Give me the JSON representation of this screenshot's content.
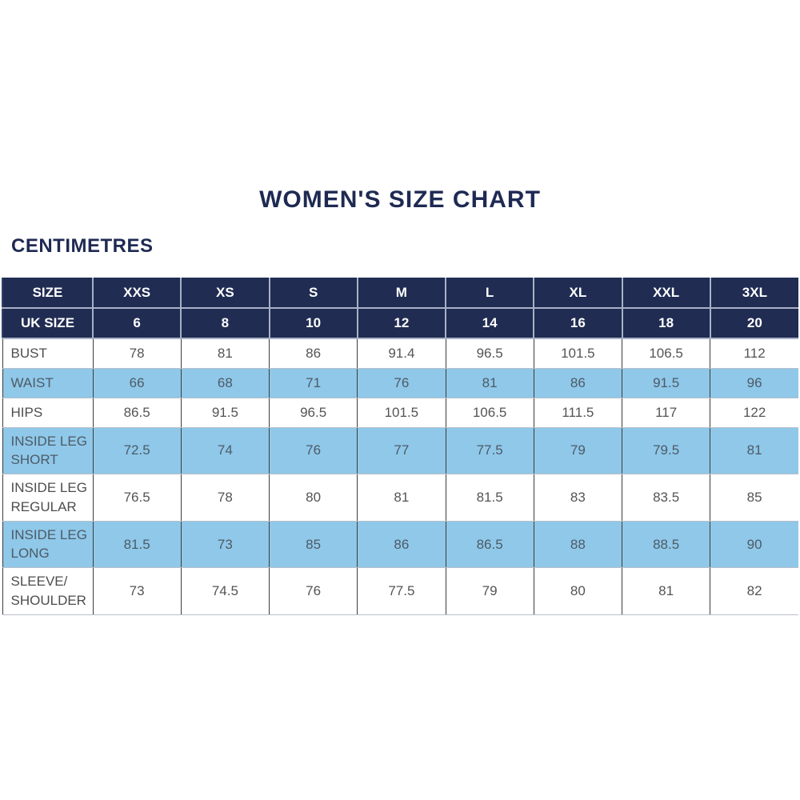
{
  "page": {
    "title": "WOMEN'S SIZE CHART",
    "subtitle": "CENTIMETRES"
  },
  "colors": {
    "navy_header": "#202c52",
    "light_blue_row": "#8fc8e9",
    "title_text": "#1e2a52",
    "header_text": "#ffffff",
    "body_text": "#545454"
  },
  "chart_data": {
    "type": "table",
    "title": "WOMEN'S SIZE CHART",
    "unit": "CENTIMETRES",
    "header_rows": [
      {
        "label": "SIZE",
        "values": [
          "XXS",
          "XS",
          "S",
          "M",
          "L",
          "XL",
          "XXL",
          "3XL"
        ]
      },
      {
        "label": "UK SIZE",
        "values": [
          "6",
          "8",
          "10",
          "12",
          "14",
          "16",
          "18",
          "20"
        ]
      }
    ],
    "rows": [
      {
        "label": "BUST",
        "values": [
          "78",
          "81",
          "86",
          "91.4",
          "96.5",
          "101.5",
          "106.5",
          "112"
        ]
      },
      {
        "label": "WAIST",
        "values": [
          "66",
          "68",
          "71",
          "76",
          "81",
          "86",
          "91.5",
          "96"
        ]
      },
      {
        "label": "HIPS",
        "values": [
          "86.5",
          "91.5",
          "96.5",
          "101.5",
          "106.5",
          "111.5",
          "117",
          "122"
        ]
      },
      {
        "label": "INSIDE LEG SHORT",
        "values": [
          "72.5",
          "74",
          "76",
          "77",
          "77.5",
          "79",
          "79.5",
          "81"
        ]
      },
      {
        "label": "INSIDE LEG REGULAR",
        "values": [
          "76.5",
          "78",
          "80",
          "81",
          "81.5",
          "83",
          "83.5",
          "85"
        ]
      },
      {
        "label": "INSIDE LEG LONG",
        "values": [
          "81.5",
          "73",
          "85",
          "86",
          "86.5",
          "88",
          "88.5",
          "90"
        ]
      },
      {
        "label": "SLEEVE/ SHOULDER",
        "values": [
          "73",
          "74.5",
          "76",
          "77.5",
          "79",
          "80",
          "81",
          "82"
        ]
      }
    ]
  }
}
